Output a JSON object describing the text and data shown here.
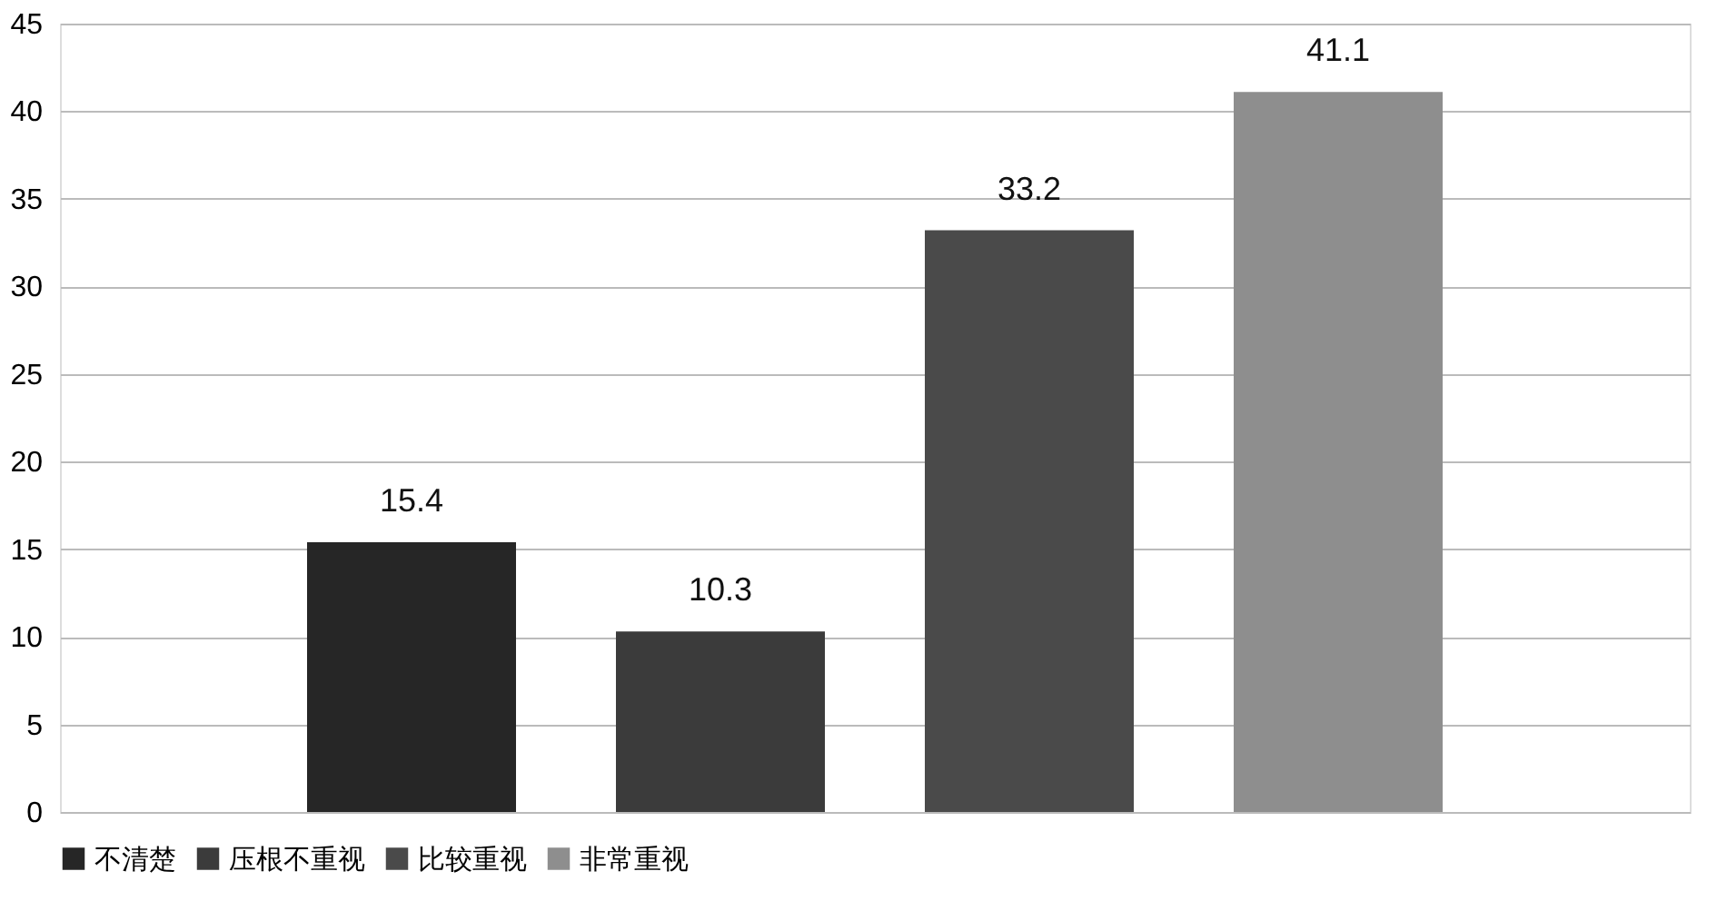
{
  "chart_data": {
    "type": "bar",
    "categories": [
      null
    ],
    "series": [
      {
        "name": "不清楚",
        "color": "#262626",
        "values": [
          15.4
        ]
      },
      {
        "name": "压根不重视",
        "color": "#3b3b3b",
        "values": [
          10.3
        ]
      },
      {
        "name": "比较重视",
        "color": "#4a4a4a",
        "values": [
          33.2
        ]
      },
      {
        "name": "非常重视",
        "color": "#8e8e8e",
        "values": [
          41.1
        ]
      }
    ],
    "ylim": [
      0,
      45
    ],
    "yticks": [
      0,
      5,
      10,
      15,
      20,
      25,
      30,
      35,
      40,
      45
    ],
    "grid": "y",
    "legend": "bottom",
    "data_labels": true
  }
}
